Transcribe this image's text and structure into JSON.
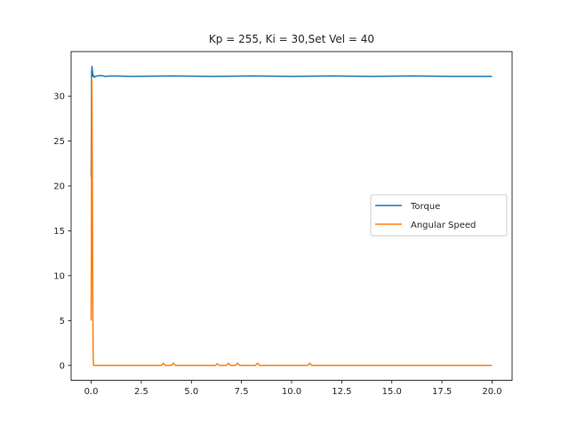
{
  "chart_data": {
    "type": "line",
    "title": "Kp = 255, Ki = 30,Set Vel = 40",
    "xlabel": "",
    "ylabel": "",
    "xlim": [
      -0.999,
      20.999
    ],
    "ylim": [
      -1.665,
      34.965
    ],
    "xticks": [
      0.0,
      2.5,
      5.0,
      7.5,
      10.0,
      12.5,
      15.0,
      17.5,
      20.0
    ],
    "xtick_labels": [
      "0.0",
      "2.5",
      "5.0",
      "7.5",
      "10.0",
      "12.5",
      "15.0",
      "17.5",
      "20.0"
    ],
    "yticks": [
      0,
      5,
      10,
      15,
      20,
      25,
      30
    ],
    "ytick_labels": [
      "0",
      "5",
      "10",
      "15",
      "20",
      "25",
      "30"
    ],
    "grid": false,
    "legend_position": "center-right",
    "series": [
      {
        "name": "Torque",
        "color": "#1f77b4",
        "x": [
          0,
          0.01,
          0.02,
          0.04,
          0.06,
          0.09,
          0.12,
          0.16,
          0.2,
          0.3,
          0.5,
          0.7,
          1.0,
          2.0,
          4.0,
          6.0,
          8.0,
          10.0,
          12.0,
          14.0,
          16.0,
          18.0,
          20.0
        ],
        "y": [
          21.0,
          27.0,
          32.5,
          33.3,
          32.9,
          32.2,
          32.3,
          32.1,
          32.2,
          32.25,
          32.3,
          32.2,
          32.25,
          32.2,
          32.25,
          32.2,
          32.25,
          32.2,
          32.25,
          32.2,
          32.25,
          32.2,
          32.2
        ]
      },
      {
        "name": "Angular Speed",
        "color": "#ff7f0e",
        "x": [
          0,
          0.01,
          0.02,
          0.03,
          0.04,
          0.06,
          0.08,
          0.1,
          0.12,
          0.3,
          1.0,
          3.5,
          3.6,
          3.7,
          4.0,
          4.1,
          4.2,
          6.2,
          6.3,
          6.4,
          6.75,
          6.85,
          6.95,
          7.2,
          7.3,
          7.4,
          8.2,
          8.3,
          8.4,
          10.8,
          10.9,
          11.0,
          15.0,
          20.0
        ],
        "y": [
          5.0,
          12.0,
          29.0,
          32.0,
          31.0,
          22.0,
          8.0,
          1.0,
          0.0,
          0.0,
          0.0,
          0.0,
          0.25,
          0.0,
          0.0,
          0.25,
          0.0,
          0.0,
          0.2,
          0.0,
          0.0,
          0.25,
          0.0,
          0.0,
          0.25,
          0.0,
          0.0,
          0.25,
          0.0,
          0.0,
          0.25,
          0.0,
          0.0,
          0.0
        ]
      }
    ]
  }
}
